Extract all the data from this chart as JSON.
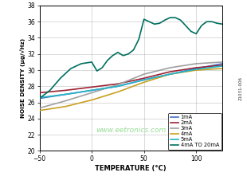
{
  "xlabel": "TEMPERATURE (°C)",
  "ylabel": "NOISE DENSITY (μg/√Hz)",
  "xlim": [
    -50,
    125
  ],
  "ylim": [
    20,
    38
  ],
  "xticks": [
    -50,
    0,
    50,
    100
  ],
  "yticks": [
    20,
    22,
    24,
    26,
    28,
    30,
    32,
    34,
    36,
    38
  ],
  "bg_color": "#ffffff",
  "series": {
    "1mA": {
      "color": "#4472c4",
      "x": [
        -50,
        -25,
        0,
        25,
        50,
        75,
        100,
        125
      ],
      "y": [
        26.5,
        27.0,
        27.5,
        28.0,
        28.8,
        29.5,
        30.2,
        30.8
      ]
    },
    "2mA": {
      "color": "#9b2335",
      "x": [
        -50,
        -25,
        0,
        25,
        50,
        75,
        100,
        125
      ],
      "y": [
        27.2,
        27.5,
        27.9,
        28.3,
        29.0,
        29.8,
        30.3,
        30.6
      ]
    },
    "3mA": {
      "color": "#a0a0a0",
      "x": [
        -50,
        -25,
        0,
        25,
        50,
        75,
        100,
        125
      ],
      "y": [
        25.3,
        26.2,
        27.2,
        28.2,
        29.5,
        30.3,
        30.8,
        31.0
      ]
    },
    "4mA": {
      "color": "#c8a020",
      "x": [
        -50,
        -25,
        0,
        25,
        50,
        75,
        100,
        125
      ],
      "y": [
        25.0,
        25.5,
        26.3,
        27.3,
        28.5,
        29.5,
        30.0,
        30.2
      ]
    },
    "5mA": {
      "color": "#23b5c8",
      "x": [
        -50,
        -25,
        0,
        25,
        50,
        75,
        100,
        125
      ],
      "y": [
        26.6,
        27.0,
        27.5,
        28.0,
        28.8,
        29.5,
        30.1,
        30.5
      ]
    },
    "4mA TO 20mA": {
      "color": "#007060",
      "x": [
        -50,
        -40,
        -30,
        -20,
        -10,
        0,
        5,
        10,
        15,
        20,
        25,
        30,
        35,
        40,
        45,
        50,
        55,
        60,
        65,
        70,
        75,
        80,
        85,
        90,
        95,
        100,
        105,
        110,
        115,
        120,
        125
      ],
      "y": [
        26.5,
        27.5,
        29.0,
        30.2,
        30.8,
        31.0,
        29.9,
        30.3,
        31.2,
        31.8,
        32.2,
        31.8,
        32.0,
        32.5,
        33.8,
        36.3,
        36.0,
        35.7,
        35.8,
        36.2,
        36.5,
        36.5,
        36.2,
        35.5,
        34.8,
        34.5,
        35.5,
        36.0,
        36.0,
        35.8,
        35.7
      ]
    }
  },
  "legend_order": [
    "1mA",
    "2mA",
    "3mA",
    "4mA",
    "5mA",
    "4mA TO 20mA"
  ],
  "watermark": "www.eetronics.com",
  "code_label": "21031-006"
}
